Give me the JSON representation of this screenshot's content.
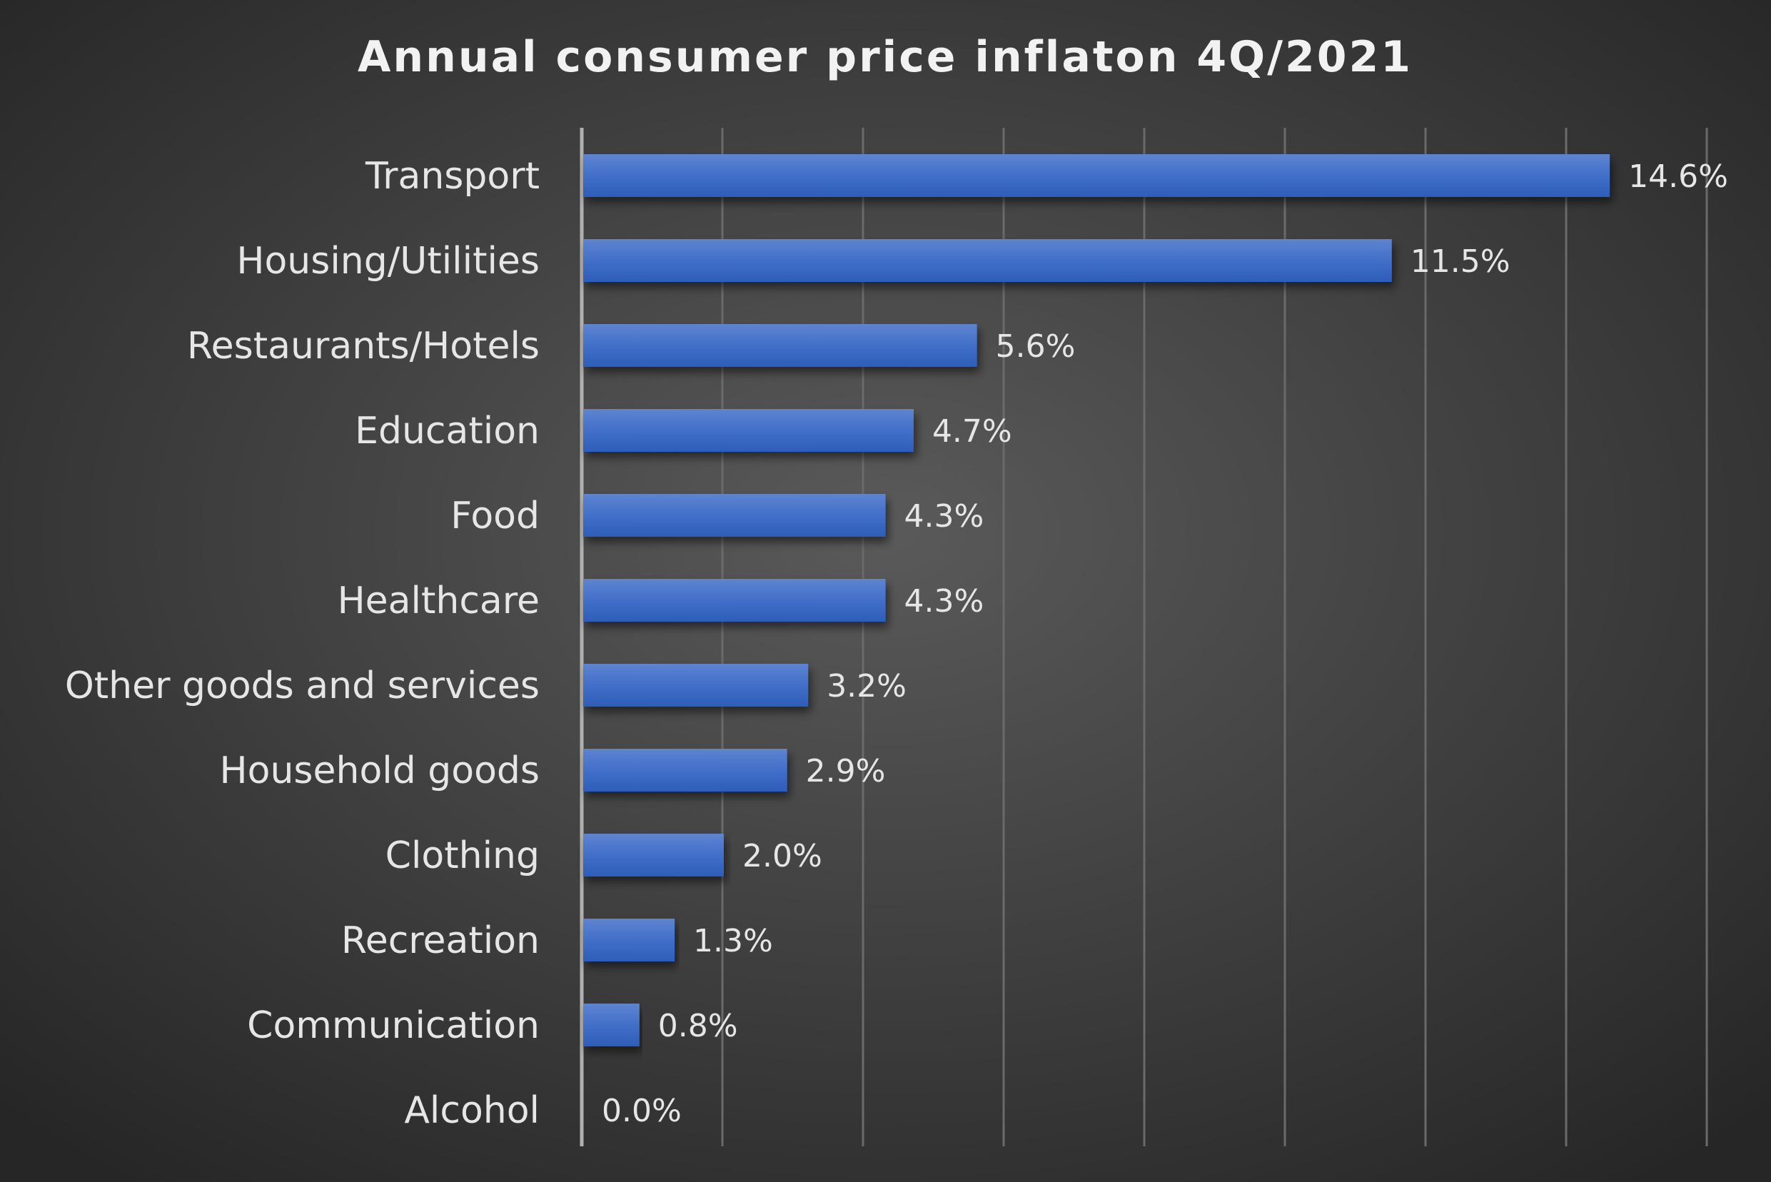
{
  "chart_data": {
    "type": "bar",
    "orientation": "horizontal",
    "title": "Annual consumer price inflaton 4Q/2021",
    "categories": [
      "Transport",
      "Housing/Utilities",
      "Restaurants/Hotels",
      "Education",
      "Food",
      "Healthcare",
      "Other goods and services",
      "Household goods",
      "Clothing",
      "Recreation",
      "Communication",
      "Alcohol"
    ],
    "values": [
      14.6,
      11.5,
      5.6,
      4.7,
      4.3,
      4.3,
      3.2,
      2.9,
      2.0,
      1.3,
      0.8,
      0.0
    ],
    "data_labels": [
      "14.6%",
      "11.5%",
      "5.6%",
      "4.7%",
      "4.3%",
      "4.3%",
      "3.2%",
      "2.9%",
      "2.0%",
      "1.3%",
      "0.8%",
      "0.0%"
    ],
    "xlim": [
      0,
      16
    ],
    "x_gridlines": [
      2,
      4,
      6,
      8,
      10,
      12,
      14,
      16
    ],
    "grid": true,
    "legend": "none",
    "colors": {
      "bar": "#4472C4",
      "background_center": "#5a5a5a",
      "background_edge": "#262626",
      "text": "#e6e6e6",
      "grid": "#6a6a6a"
    }
  }
}
